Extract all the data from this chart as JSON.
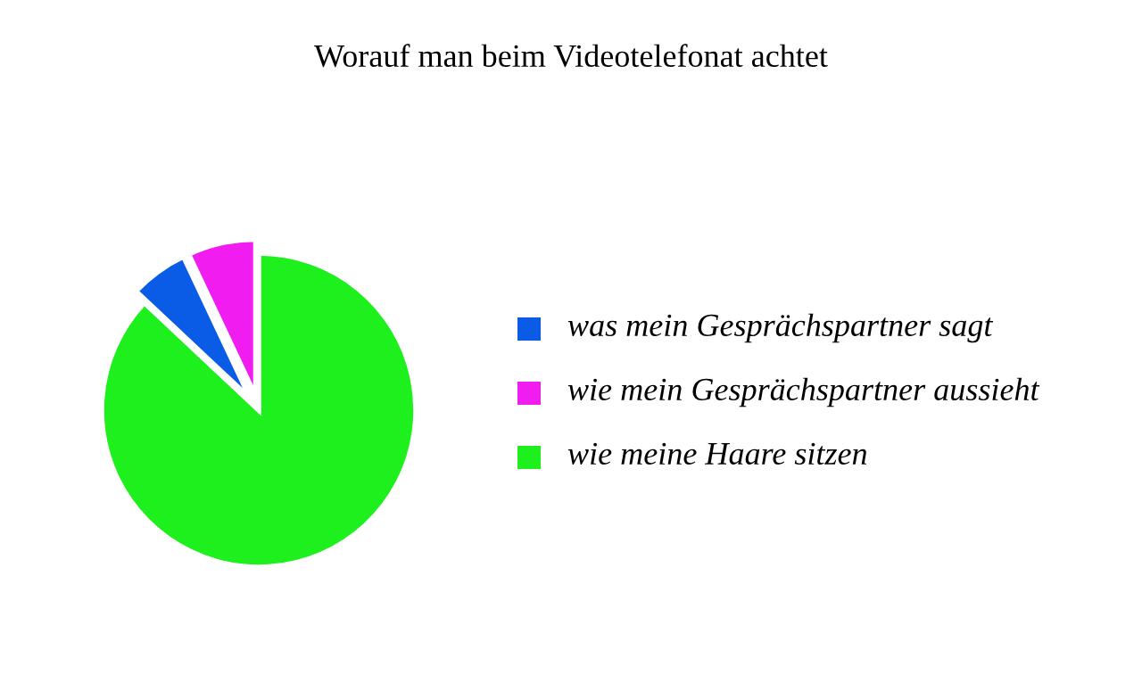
{
  "chart_data": {
    "type": "pie",
    "title": "Worauf man beim Videotelefonat achtet",
    "categories": [
      "was mein Gesprächspartner sagt",
      "wie mein Gesprächspartner aussieht",
      "wie meine Haare sitzen"
    ],
    "values": [
      6,
      7,
      87
    ],
    "colors": [
      "#0a5ce6",
      "#f01cf0",
      "#1ef01e"
    ],
    "legend": "right"
  }
}
